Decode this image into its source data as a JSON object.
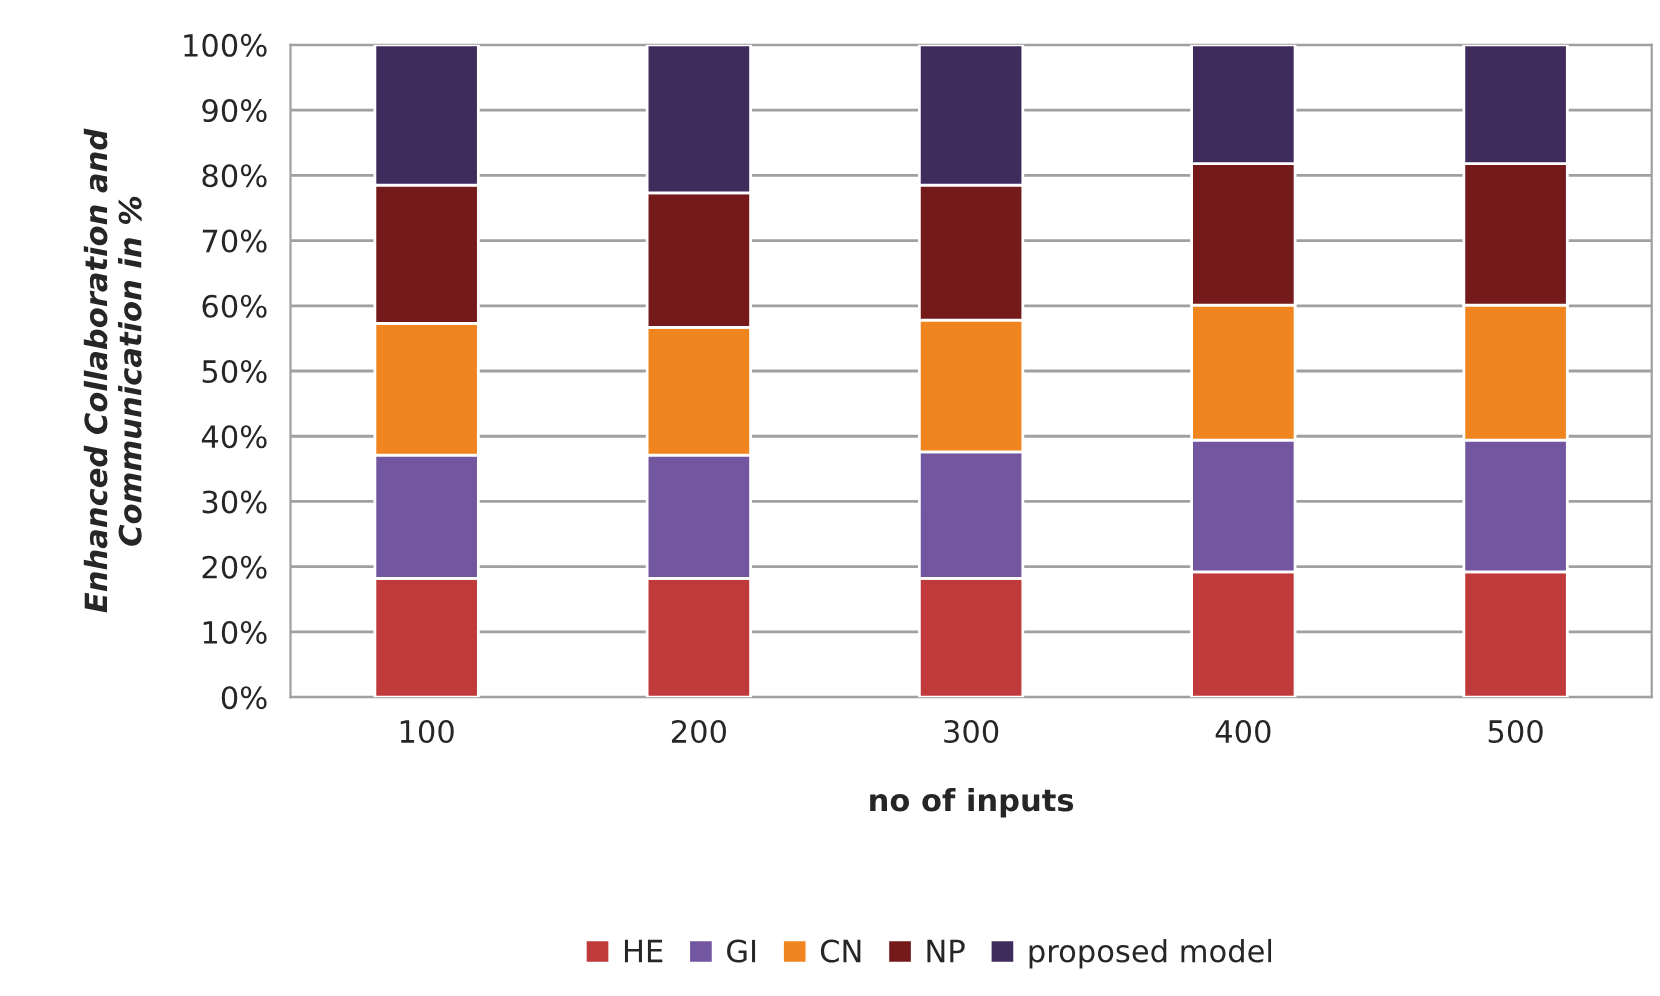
{
  "chart_data": {
    "type": "bar",
    "stacked": true,
    "xlabel": "no of inputs",
    "ylabel": "Enhanced Collaboration and\nCommunication in %",
    "categories": [
      "100",
      "200",
      "300",
      "400",
      "500"
    ],
    "series": [
      {
        "name": "HE",
        "color": "#c0393b",
        "values": [
          18.2,
          18.2,
          18.2,
          19.2,
          19.2
        ]
      },
      {
        "name": "GI",
        "color": "#7256a0",
        "values": [
          18.9,
          18.9,
          19.4,
          20.2,
          20.2
        ]
      },
      {
        "name": "CN",
        "color": "#f0841e",
        "values": [
          20.2,
          19.6,
          20.2,
          20.7,
          20.7
        ]
      },
      {
        "name": "NP",
        "color": "#741a1a",
        "values": [
          21.2,
          20.6,
          20.7,
          21.7,
          21.7
        ]
      },
      {
        "name": "proposed model",
        "color": "#3f2c5c",
        "values": [
          21.5,
          22.7,
          21.5,
          18.2,
          18.2
        ]
      }
    ],
    "ylim": [
      0,
      100
    ],
    "yticks": [
      {
        "value": 0,
        "label": "0%"
      },
      {
        "value": 10,
        "label": "10%"
      },
      {
        "value": 20,
        "label": "20%"
      },
      {
        "value": 30,
        "label": "30%"
      },
      {
        "value": 40,
        "label": "40%"
      },
      {
        "value": 50,
        "label": "50%"
      },
      {
        "value": 60,
        "label": "60%"
      },
      {
        "value": 70,
        "label": "70%"
      },
      {
        "value": 80,
        "label": "80%"
      },
      {
        "value": 90,
        "label": "90%"
      },
      {
        "value": 100,
        "label": "100%"
      }
    ],
    "grid": "y",
    "legend": "bottom"
  }
}
